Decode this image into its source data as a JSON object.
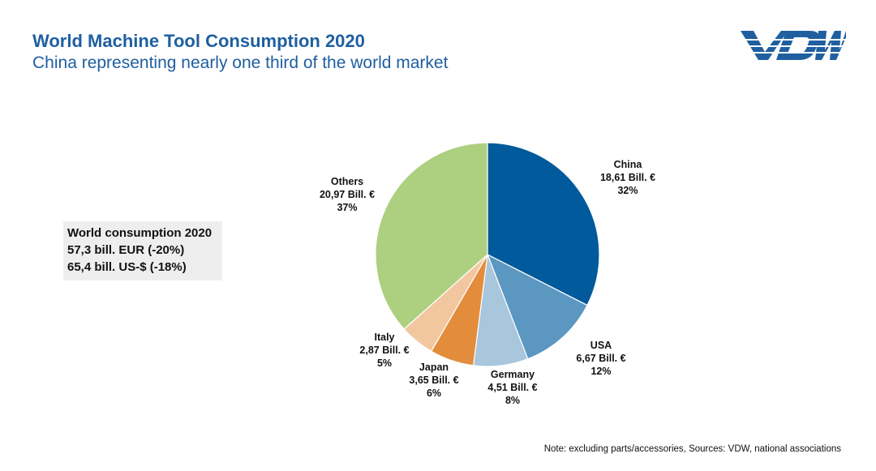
{
  "header": {
    "title": "World Machine Tool Consumption 2020",
    "subtitle": "China representing nearly one third of the world market",
    "logo_text": "VDW"
  },
  "info_box": {
    "line1": "World consumption 2020",
    "line2": "57,3 bill. EUR (-20%)",
    "line3": "65,4 bill. US-$ (-18%)"
  },
  "note": "Note: excluding parts/accessories, Sources: VDW, national associations",
  "chart_data": {
    "type": "pie",
    "start_angle": "12 o'clock, clockwise",
    "slices": [
      {
        "name": "China",
        "value": 18.61,
        "value_label": "18,61 Bill. €",
        "percent_label": "32%",
        "color": "#005a9b"
      },
      {
        "name": "USA",
        "value": 6.67,
        "value_label": "6,67 Bill. €",
        "percent_label": "12%",
        "color": "#5b97c1"
      },
      {
        "name": "Germany",
        "value": 4.51,
        "value_label": "4,51 Bill. €",
        "percent_label": "8%",
        "color": "#a8c6dc"
      },
      {
        "name": "Japan",
        "value": 3.65,
        "value_label": "3,65 Bill. €",
        "percent_label": "6%",
        "color": "#e38d3c"
      },
      {
        "name": "Italy",
        "value": 2.87,
        "value_label": "2,87 Bill. €",
        "percent_label": "5%",
        "color": "#f2c7a0"
      },
      {
        "name": "Others",
        "value": 20.97,
        "value_label": "20,97 Bill. €",
        "percent_label": "37%",
        "color": "#add080"
      }
    ]
  }
}
